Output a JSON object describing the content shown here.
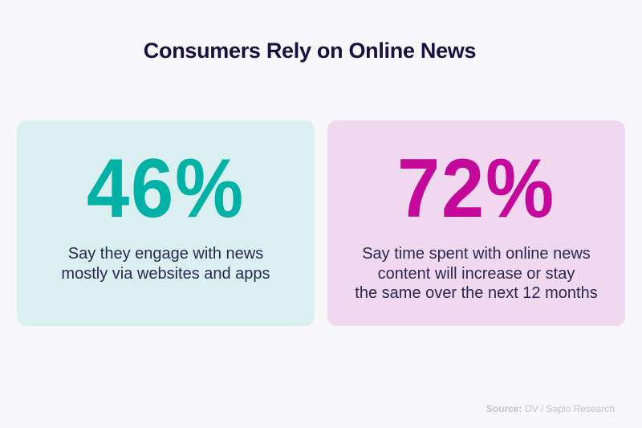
{
  "title": "Consumers Rely on Online News",
  "cards": [
    {
      "stat": "46%",
      "color": "#00b1a5",
      "background": "#d9eff0",
      "lines": [
        "Say they engage with news",
        "mostly via websites and apps"
      ]
    },
    {
      "stat": "72%",
      "color": "#c4089a",
      "background": "#f0d8ee",
      "lines": [
        "Say time spent with online news",
        "content will increase or stay",
        "the same over the next 12 months"
      ]
    }
  ],
  "source": {
    "label": "Source:",
    "text": " DV / Sapio Research"
  }
}
